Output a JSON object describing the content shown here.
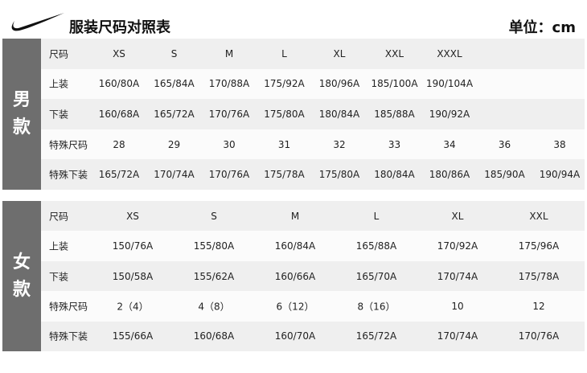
{
  "header": {
    "title": "服装尺码对照表",
    "unit": "单位：cm",
    "logo": "nike-swoosh"
  },
  "colors": {
    "side_bar": "#6e6e6e",
    "row_dark": "#efefef",
    "row_light": "#fbfbfb"
  },
  "men": {
    "label": [
      "男",
      "款"
    ],
    "rows": [
      {
        "label": "尺码",
        "cells": [
          "XS",
          "S",
          "M",
          "L",
          "XL",
          "XXL",
          "XXXL",
          "",
          ""
        ]
      },
      {
        "label": "上装",
        "cells": [
          "160/80A",
          "165/84A",
          "170/88A",
          "175/92A",
          "180/96A",
          "185/100A",
          "190/104A",
          "",
          ""
        ]
      },
      {
        "label": "下装",
        "cells": [
          "160/68A",
          "165/72A",
          "170/76A",
          "175/80A",
          "180/84A",
          "185/88A",
          "190/92A",
          "",
          ""
        ]
      },
      {
        "label": "特殊尺码",
        "cells": [
          "28",
          "29",
          "30",
          "31",
          "32",
          "33",
          "34",
          "36",
          "38"
        ]
      },
      {
        "label": "特殊下装",
        "cells": [
          "165/72A",
          "170/74A",
          "170/76A",
          "175/78A",
          "175/80A",
          "180/84A",
          "180/86A",
          "185/90A",
          "190/94A"
        ]
      }
    ]
  },
  "women": {
    "label": [
      "女",
      "款"
    ],
    "rows": [
      {
        "label": "尺码",
        "cells": [
          "XS",
          "S",
          "M",
          "L",
          "XL",
          "XXL"
        ]
      },
      {
        "label": "上装",
        "cells": [
          "150/76A",
          "155/80A",
          "160/84A",
          "165/88A",
          "170/92A",
          "175/96A"
        ]
      },
      {
        "label": "下装",
        "cells": [
          "150/58A",
          "155/62A",
          "160/66A",
          "165/70A",
          "170/74A",
          "175/78A"
        ]
      },
      {
        "label": "特殊尺码",
        "cells": [
          "2（4）",
          "4（8）",
          "6（12）",
          "8（16）",
          "10",
          "12"
        ]
      },
      {
        "label": "特殊下装",
        "cells": [
          "155/66A",
          "160/68A",
          "160/70A",
          "165/72A",
          "170/74A",
          "170/76A"
        ]
      }
    ]
  }
}
